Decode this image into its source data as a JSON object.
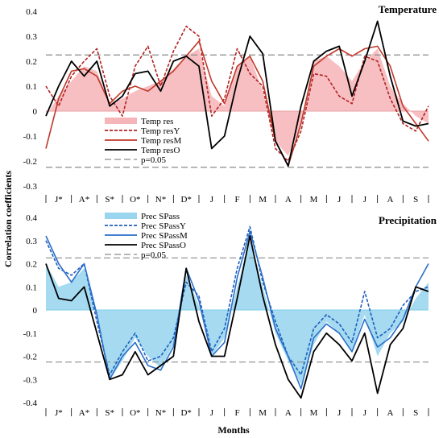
{
  "chart_data": [
    {
      "type": "line",
      "title": "Temperature",
      "ylabel": "Correlation coefficients",
      "xlabel": "Months",
      "ylim": [
        -0.4,
        0.4
      ],
      "yticks": [
        "0.4",
        "0.3",
        "0.2",
        "0.1",
        "0",
        "-0.1",
        "-0.2",
        "-0.3"
      ],
      "month_labels": [
        "J*",
        "A*",
        "S*",
        "O*",
        "N*",
        "D*",
        "J",
        "F",
        "M",
        "A",
        "M",
        "J",
        "J",
        "A",
        "S"
      ],
      "threshold": 0.225,
      "threshold_label": "p=0.05",
      "legend_position": "lower-left",
      "x": [
        0,
        0.5,
        1,
        1.5,
        2,
        2.5,
        3,
        3.5,
        4,
        4.5,
        5,
        5.5,
        6,
        6.5,
        7,
        7.5,
        8,
        8.5,
        9,
        9.5,
        10,
        10.5,
        11,
        11.5,
        12,
        12.5,
        13,
        13.5,
        14,
        14.5,
        15
      ],
      "series": [
        {
          "name": "Temp res",
          "style": "area",
          "color": "#f4a9ad",
          "values": [
            -0.02,
            0.06,
            0.12,
            0.18,
            0.16,
            0.03,
            0.05,
            0.08,
            0.1,
            0.12,
            0.17,
            0.22,
            0.25,
            0.06,
            0.02,
            0.18,
            0.22,
            0.08,
            -0.12,
            -0.18,
            -0.05,
            0.2,
            0.22,
            0.18,
            0.12,
            0.2,
            0.25,
            0.1,
            0.03,
            -0.02,
            -0.05
          ]
        },
        {
          "name": "Temp resY",
          "style": "dashed",
          "color": "#b22222",
          "values": [
            0.1,
            0.02,
            0.14,
            0.2,
            0.25,
            0.06,
            -0.02,
            0.18,
            0.26,
            0.1,
            0.24,
            0.34,
            0.3,
            -0.02,
            0.05,
            0.25,
            0.15,
            0.1,
            -0.15,
            -0.2,
            -0.08,
            0.15,
            0.14,
            0.06,
            0.03,
            0.22,
            0.2,
            0.05,
            -0.05,
            -0.08,
            0.02
          ]
        },
        {
          "name": "Temp resM",
          "style": "solid",
          "color": "#c0392b",
          "values": [
            -0.15,
            0.05,
            0.16,
            0.17,
            0.14,
            0.03,
            0.08,
            0.1,
            0.08,
            0.12,
            0.16,
            0.22,
            0.28,
            0.12,
            0.03,
            0.18,
            0.22,
            0.12,
            -0.12,
            -0.22,
            -0.05,
            0.18,
            0.22,
            0.25,
            0.22,
            0.25,
            0.26,
            0.18,
            0.02,
            -0.05,
            -0.12
          ]
        },
        {
          "name": "Temp resO",
          "style": "solid",
          "color": "#000000",
          "values": [
            -0.02,
            0.1,
            0.2,
            0.14,
            0.2,
            0.02,
            0.06,
            0.15,
            0.16,
            0.08,
            0.2,
            0.22,
            0.18,
            -0.15,
            -0.1,
            0.12,
            0.3,
            0.23,
            -0.12,
            -0.22,
            0.02,
            0.2,
            0.24,
            0.26,
            0.06,
            0.2,
            0.36,
            0.14,
            -0.04,
            -0.06,
            -0.05
          ]
        }
      ]
    },
    {
      "type": "line",
      "title": "Precipitation",
      "ylabel": "Correlation coefficients",
      "xlabel": "Months",
      "ylim": [
        -0.4,
        0.4
      ],
      "yticks": [
        "0.4",
        "0.3",
        "0.2",
        "0.1",
        "0",
        "-0.1",
        "-0.2",
        "-0.3",
        "-0.4"
      ],
      "month_labels": [
        "J*",
        "A*",
        "S*",
        "O*",
        "N*",
        "D*",
        "J",
        "F",
        "M",
        "A",
        "M",
        "J",
        "J",
        "A",
        "S"
      ],
      "threshold": 0.225,
      "threshold_label": "p=0.05",
      "legend_position": "top-left",
      "x": [
        0,
        0.5,
        1,
        1.5,
        2,
        2.5,
        3,
        3.5,
        4,
        4.5,
        5,
        5.5,
        6,
        6.5,
        7,
        7.5,
        8,
        8.5,
        9,
        9.5,
        10,
        10.5,
        11,
        11.5,
        12,
        12.5,
        13,
        13.5,
        14,
        14.5,
        15
      ],
      "series": [
        {
          "name": "Prec SPass",
          "style": "area",
          "color": "#87ceeb",
          "values": [
            0.2,
            0.1,
            0.12,
            0.18,
            -0.02,
            -0.3,
            -0.22,
            -0.12,
            -0.2,
            -0.25,
            -0.15,
            0.15,
            0.02,
            -0.2,
            -0.12,
            0.1,
            0.3,
            0.1,
            -0.1,
            -0.22,
            -0.32,
            -0.15,
            -0.05,
            -0.1,
            -0.18,
            -0.02,
            -0.2,
            -0.1,
            -0.05,
            0.05,
            0.12
          ]
        },
        {
          "name": "Prec SPassY",
          "style": "dashed",
          "color": "#1f5fbf",
          "values": [
            0.3,
            0.18,
            0.15,
            0.2,
            -0.05,
            -0.28,
            -0.18,
            -0.1,
            -0.22,
            -0.2,
            -0.12,
            0.12,
            0.06,
            -0.18,
            -0.08,
            0.18,
            0.36,
            0.12,
            -0.05,
            -0.2,
            -0.28,
            -0.08,
            -0.02,
            -0.06,
            -0.14,
            0.08,
            -0.12,
            -0.08,
            0.02,
            0.08,
            0.1
          ]
        },
        {
          "name": "Prec SPassM",
          "style": "solid",
          "color": "#2a6fc9",
          "values": [
            0.32,
            0.2,
            0.12,
            0.2,
            -0.02,
            -0.3,
            -0.2,
            -0.14,
            -0.24,
            -0.26,
            -0.16,
            0.18,
            0.04,
            -0.2,
            -0.14,
            0.14,
            0.34,
            0.14,
            -0.08,
            -0.2,
            -0.34,
            -0.12,
            -0.06,
            -0.1,
            -0.18,
            -0.04,
            -0.16,
            -0.12,
            -0.04,
            0.1,
            0.2
          ]
        },
        {
          "name": "Prec SPassO",
          "style": "solid",
          "color": "#000000",
          "values": [
            0.2,
            0.05,
            0.04,
            0.1,
            -0.1,
            -0.3,
            -0.28,
            -0.18,
            -0.28,
            -0.24,
            -0.2,
            0.18,
            -0.05,
            -0.2,
            -0.2,
            0.05,
            0.32,
            0.06,
            -0.15,
            -0.3,
            -0.38,
            -0.18,
            -0.1,
            -0.15,
            -0.22,
            -0.1,
            -0.36,
            -0.15,
            -0.08,
            0.1,
            0.08
          ]
        }
      ]
    }
  ]
}
